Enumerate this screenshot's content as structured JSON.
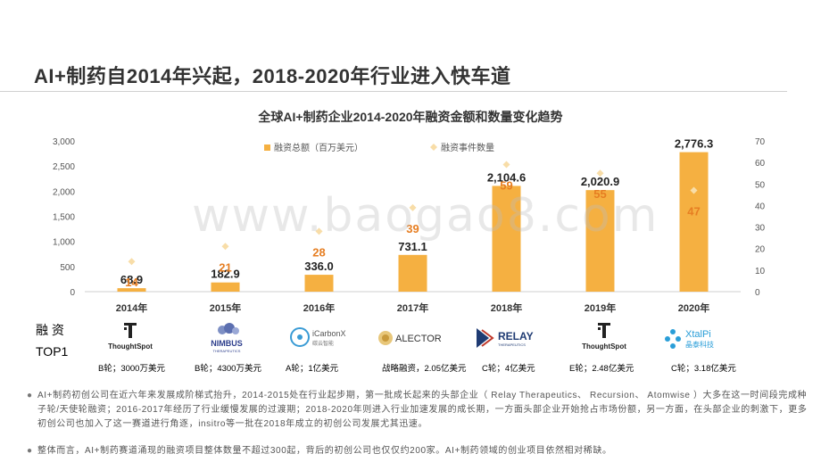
{
  "page": {
    "title": "AI+制药自2014年兴起，2018-2020年行业进入快车道",
    "watermark": "www.baogao8.com"
  },
  "chart_data": {
    "type": "bar",
    "title": "全球AI+制药企业2014-2020年融资金额和数量变化趋势",
    "categories": [
      "2014年",
      "2015年",
      "2016年",
      "2017年",
      "2018年",
      "2019年",
      "2020年"
    ],
    "series": [
      {
        "name": "融资总额（百万美元）",
        "type": "bar",
        "axis": "left",
        "values": [
          68.9,
          182.9,
          336.0,
          731.1,
          2104.6,
          2020.9,
          2776.3
        ],
        "labels": [
          "68.9",
          "182.9",
          "336.0",
          "731.1",
          "2,104.6",
          "2,020.9",
          "2,776.3"
        ],
        "color": "#F5B041"
      },
      {
        "name": "融资事件数量",
        "type": "scatter",
        "axis": "right",
        "values": [
          14,
          21,
          28,
          39,
          59,
          55,
          47
        ],
        "labels": [
          "14",
          "21",
          "28",
          "39",
          "59",
          "55",
          "47"
        ],
        "color": "#F8DDA8",
        "label_color": "#E67E22"
      }
    ],
    "y_left": {
      "min": 0,
      "max": 3000,
      "ticks": [
        "0",
        "500",
        "1,000",
        "1,500",
        "2,000",
        "2,500",
        "3,000"
      ]
    },
    "y_right": {
      "min": 0,
      "max": 70,
      "ticks": [
        "0",
        "10",
        "20",
        "30",
        "40",
        "50",
        "60",
        "70"
      ]
    },
    "legend_position": "top",
    "grid": false
  },
  "funding_top": {
    "label_line1": "融 资",
    "label_line2": "TOP1",
    "companies": [
      {
        "name": "ThoughtSpot",
        "round": "B轮；3000万美元",
        "icon": "thoughtspot-logo"
      },
      {
        "name": "NIMBUS",
        "sub": "THERAPEUTICS",
        "round": "B轮；4300万美元",
        "icon": "nimbus-logo"
      },
      {
        "name": "iCarbonX",
        "sub": "碳云智能",
        "round": "A轮；1亿美元",
        "icon": "icarbonx-logo"
      },
      {
        "name": "ALECTOR",
        "round": "战略融资，2.05亿美元",
        "icon": "alector-logo"
      },
      {
        "name": "RELAY",
        "sub": "THERAPEUTICS",
        "round": "C轮；4亿美元",
        "icon": "relay-logo"
      },
      {
        "name": "ThoughtSpot",
        "round": "E轮；2.48亿美元",
        "icon": "thoughtspot-logo"
      },
      {
        "name": "XtalPi",
        "sub": "晶泰科技",
        "round": "C轮；3.18亿美元",
        "icon": "xtalpi-logo"
      }
    ]
  },
  "notes": [
    "AI+制药初创公司在近六年来发展成阶梯式抬升，2014-2015处在行业起步期，第一批成长起来的头部企业（ Relay Therapeutics、 Recursion、 Atomwise ）大多在这一时间段完成种子轮/天使轮融资；2016-2017年经历了行业缓慢发展的过渡期；2018-2020年则进入行业加速发展的成长期，一方面头部企业开始抢占市场份额，另一方面，在头部企业的刺激下，更多初创公司也加入了这一赛道进行角逐，insitro等一批在2018年成立的初创公司发展尤其迅速。",
    "整体而言，AI+制药赛道涌现的融资项目整体数量不超过300起，背后的初创公司也仅仅约200家。AI+制药领域的创业项目依然相对稀缺。"
  ],
  "colors": {
    "bar": "#F5B041",
    "marker": "#F8DDA8",
    "count_label": "#E67E22"
  }
}
